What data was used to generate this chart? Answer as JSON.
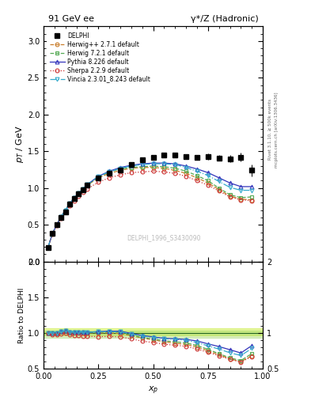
{
  "title_left": "91 GeV ee",
  "title_right": "γ*/Z (Hadronic)",
  "ylabel_main": "p_T / GeV",
  "ylabel_ratio": "Ratio to DELPHI",
  "xlabel": "x_p",
  "watermark": "DELPHI_1996_S3430090",
  "right_label_top": "Rivet 3.1.10, ≥ 500k events",
  "right_label_bot": "mcplots.cern.ch [arXiv:1306.3436]",
  "xp": [
    0.02,
    0.04,
    0.06,
    0.08,
    0.1,
    0.12,
    0.14,
    0.16,
    0.18,
    0.2,
    0.25,
    0.3,
    0.35,
    0.4,
    0.45,
    0.5,
    0.55,
    0.6,
    0.65,
    0.7,
    0.75,
    0.8,
    0.85,
    0.9,
    0.95
  ],
  "delphi": [
    0.19,
    0.38,
    0.5,
    0.6,
    0.68,
    0.78,
    0.86,
    0.92,
    0.98,
    1.04,
    1.14,
    1.2,
    1.25,
    1.32,
    1.38,
    1.42,
    1.45,
    1.45,
    1.43,
    1.42,
    1.43,
    1.41,
    1.4,
    1.42,
    1.24
  ],
  "delphi_err": [
    0.02,
    0.02,
    0.02,
    0.02,
    0.02,
    0.02,
    0.02,
    0.02,
    0.02,
    0.02,
    0.02,
    0.02,
    0.02,
    0.02,
    0.02,
    0.02,
    0.02,
    0.03,
    0.03,
    0.03,
    0.04,
    0.04,
    0.05,
    0.06,
    0.08
  ],
  "herwigpp": [
    0.19,
    0.38,
    0.5,
    0.61,
    0.7,
    0.79,
    0.87,
    0.93,
    0.99,
    1.04,
    1.14,
    1.2,
    1.24,
    1.27,
    1.28,
    1.28,
    1.27,
    1.24,
    1.2,
    1.14,
    1.07,
    0.98,
    0.89,
    0.85,
    0.84
  ],
  "herwig721": [
    0.19,
    0.38,
    0.5,
    0.61,
    0.7,
    0.79,
    0.87,
    0.93,
    0.99,
    1.04,
    1.15,
    1.22,
    1.26,
    1.28,
    1.29,
    1.3,
    1.29,
    1.27,
    1.23,
    1.17,
    1.1,
    1.0,
    0.91,
    0.87,
    0.88
  ],
  "pythia": [
    0.19,
    0.38,
    0.5,
    0.61,
    0.7,
    0.79,
    0.87,
    0.93,
    0.99,
    1.05,
    1.16,
    1.23,
    1.28,
    1.31,
    1.33,
    1.34,
    1.34,
    1.33,
    1.3,
    1.26,
    1.21,
    1.14,
    1.07,
    1.02,
    1.02
  ],
  "sherpa": [
    0.19,
    0.37,
    0.49,
    0.59,
    0.68,
    0.76,
    0.83,
    0.89,
    0.94,
    0.99,
    1.08,
    1.14,
    1.18,
    1.21,
    1.22,
    1.23,
    1.22,
    1.2,
    1.16,
    1.1,
    1.04,
    0.96,
    0.88,
    0.84,
    0.83
  ],
  "vincia": [
    0.19,
    0.38,
    0.5,
    0.61,
    0.7,
    0.79,
    0.87,
    0.93,
    0.99,
    1.05,
    1.16,
    1.22,
    1.27,
    1.3,
    1.32,
    1.33,
    1.33,
    1.32,
    1.28,
    1.23,
    1.17,
    1.09,
    1.01,
    0.97,
    0.97
  ],
  "colors": {
    "herwigpp": "#c87d2a",
    "herwig721": "#55aa55",
    "pythia": "#3333bb",
    "sherpa": "#cc3333",
    "vincia": "#33aacc"
  },
  "ylim_main": [
    0.0,
    3.2
  ],
  "ylim_ratio": [
    0.5,
    2.0
  ],
  "xlim": [
    0.0,
    1.0
  ]
}
